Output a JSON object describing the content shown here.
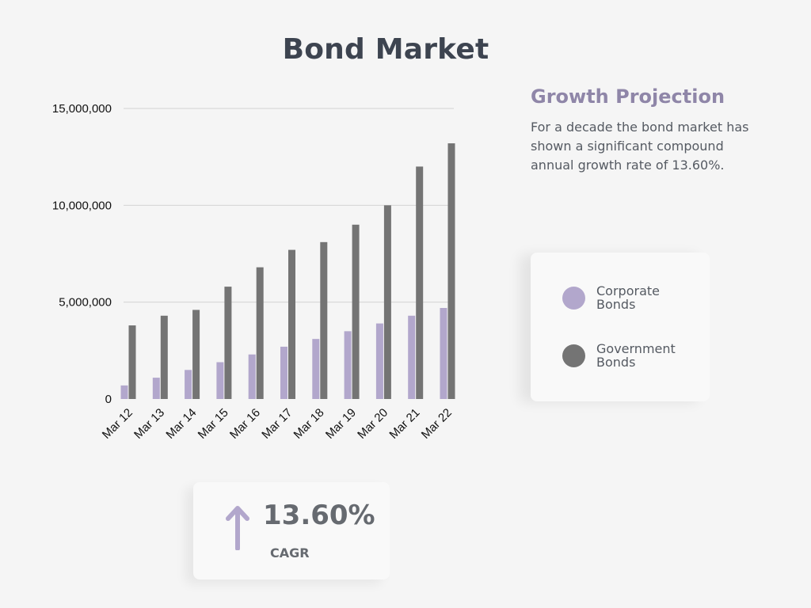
{
  "page": {
    "title": "Bond Market"
  },
  "projection": {
    "heading": "Growth Projection",
    "body": "For a decade the bond market has shown a significant compound annual growth rate of 13.60%."
  },
  "legend": {
    "items": [
      {
        "label": "Corporate Bonds",
        "color": "#b2a7cc"
      },
      {
        "label": "Government Bonds",
        "color": "#747474"
      }
    ]
  },
  "cagr": {
    "value": "13.60%",
    "label": "CAGR",
    "icon": "arrow-up-icon",
    "color": "#b2a7cc"
  },
  "chart_data": {
    "type": "bar",
    "title": "Bond Market",
    "categories": [
      "Mar 12",
      "Mar 13",
      "Mar 14",
      "Mar 15",
      "Mar 16",
      "Mar 17",
      "Mar 18",
      "Mar 19",
      "Mar 20",
      "Mar 21",
      "Mar 22"
    ],
    "series": [
      {
        "name": "Corporate Bonds",
        "color": "#b2a7cc",
        "values": [
          700000,
          1100000,
          1500000,
          1900000,
          2300000,
          2700000,
          3100000,
          3500000,
          3900000,
          4300000,
          4700000
        ]
      },
      {
        "name": "Government Bonds",
        "color": "#747474",
        "values": [
          3800000,
          4300000,
          4600000,
          5800000,
          6800000,
          7700000,
          8100000,
          9000000,
          10000000,
          12000000,
          13200000
        ]
      }
    ],
    "yticks": [
      "0",
      "5,000,000",
      "10,000,000",
      "15,000,000"
    ],
    "ytick_values": [
      0,
      5000000,
      10000000,
      15000000
    ],
    "ylim": [
      0,
      15000000
    ],
    "xlabel": "",
    "ylabel": "",
    "grid": true,
    "legend_position": "right"
  }
}
